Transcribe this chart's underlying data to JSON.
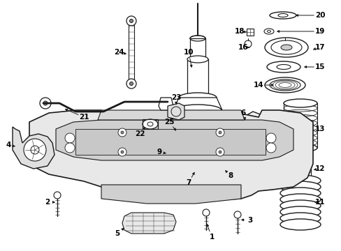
{
  "bg_color": "#ffffff",
  "fig_width": 4.89,
  "fig_height": 3.6,
  "dpi": 100,
  "lc": "#1a1a1a",
  "fs": 7.5
}
